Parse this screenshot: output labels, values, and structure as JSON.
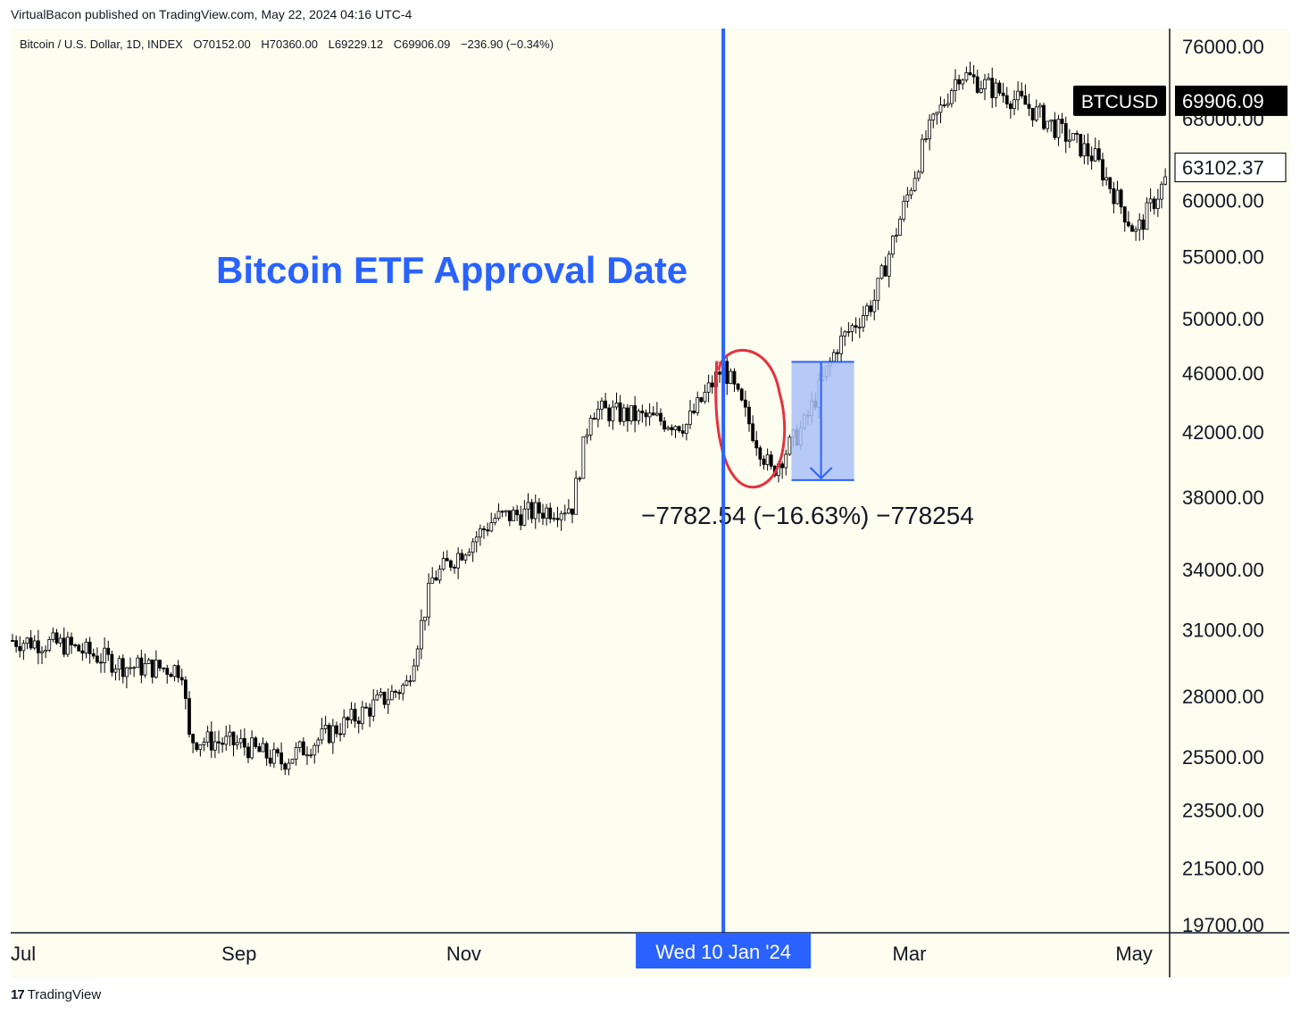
{
  "header": {
    "published_line": "VirtualBacon published on TradingView.com, May 22, 2024 04:16 UTC-4"
  },
  "ohlc": {
    "symbol_desc": "Bitcoin / U.S. Dollar, 1D, INDEX",
    "open": "O70152.00",
    "high": "H70360.00",
    "low": "L69229.12",
    "close": "C69906.09",
    "change": "−236.90 (−0.34%)"
  },
  "footer": {
    "brand": "TradingView",
    "logo_glyph": "17"
  },
  "colors": {
    "background": "#fdfdf0",
    "annotation_blue": "#2962ff",
    "measure_fill": "#aac0f7",
    "circle_red": "#e5323e",
    "candle": "#000000"
  },
  "annotations": {
    "etf_title": "Bitcoin ETF Approval Date",
    "measure_label": "−7782.54 (−16.63%) −778254",
    "crosshair_date": "Wed 10 Jan '24"
  },
  "price_badges": {
    "symbol": "BTCUSD",
    "last_price": "69906.09",
    "crosshair_price": "63102.37"
  },
  "chart_data": {
    "type": "candlestick",
    "scale": "log",
    "x_ticks": [
      "Jul",
      "Sep",
      "Nov",
      "Mar",
      "May"
    ],
    "y_ticks": [
      "76000.00",
      "68000.00",
      "60000.00",
      "55000.00",
      "50000.00",
      "46000.00",
      "42000.00",
      "38000.00",
      "34000.00",
      "31000.00",
      "28000.00",
      "25500.00",
      "23500.00",
      "21500.00",
      "19700.00"
    ],
    "ylim": [
      19700,
      76000
    ],
    "series": [
      {
        "name": "BTCUSD",
        "points": [
          {
            "x": "Jul 1",
            "close": 30500
          },
          {
            "x": "Jul 15",
            "close": 30300
          },
          {
            "x": "Aug 1",
            "close": 29300
          },
          {
            "x": "Aug 16",
            "close": 29200
          },
          {
            "x": "Aug 18",
            "close": 26200
          },
          {
            "x": "Sep 1",
            "close": 26000
          },
          {
            "x": "Sep 12",
            "close": 25300
          },
          {
            "x": "Oct 1",
            "close": 27000
          },
          {
            "x": "Oct 16",
            "close": 28500
          },
          {
            "x": "Oct 23",
            "close": 33500
          },
          {
            "x": "Nov 9",
            "close": 36800
          },
          {
            "x": "Nov 30",
            "close": 37500
          },
          {
            "x": "Dec 5",
            "close": 43500
          },
          {
            "x": "Dec 31",
            "close": 42500
          },
          {
            "x": "Jan 10",
            "close": 46500
          },
          {
            "x": "Jan 23",
            "close": 39500
          },
          {
            "x": "Feb 1",
            "close": 42500
          },
          {
            "x": "Feb 10",
            "close": 48000
          },
          {
            "x": "Feb 20",
            "close": 51500
          },
          {
            "x": "Mar 5",
            "close": 66000
          },
          {
            "x": "Mar 14",
            "close": 73000
          },
          {
            "x": "Apr 1",
            "close": 69500
          },
          {
            "x": "Apr 20",
            "close": 64000
          },
          {
            "x": "May 1",
            "close": 57000
          },
          {
            "x": "May 21",
            "close": 69906
          }
        ]
      }
    ],
    "measure": {
      "from_date": "Jan 10",
      "from_price": 46800,
      "to_price": 39020,
      "delta": -7782.54,
      "pct": -16.63
    },
    "grid": false
  }
}
